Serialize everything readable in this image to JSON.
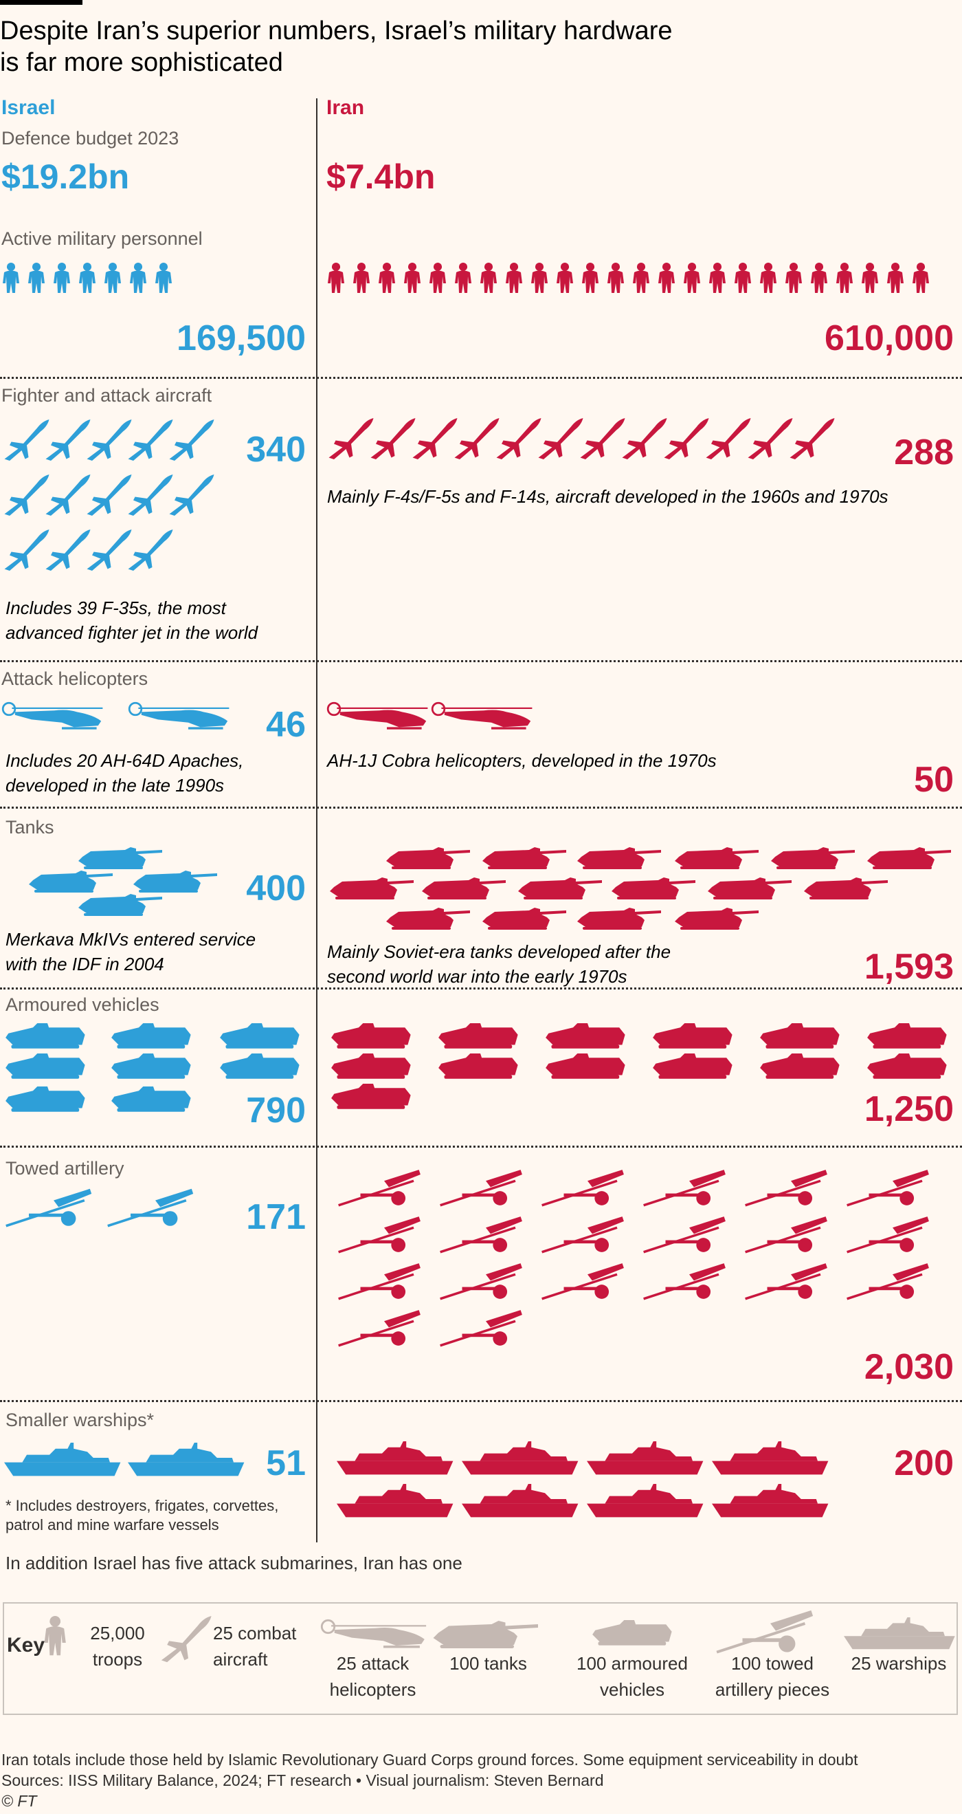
{
  "title": "Despite Iran’s superior numbers, Israel’s military hardware is far more sophisticated",
  "title_line1": "Despite Iran’s superior numbers, Israel’s military hardware",
  "title_line2": "is far more sophisticated",
  "colors": {
    "israel": "#2e9fd8",
    "iran": "#c8173e",
    "key": "#c4b8b2"
  },
  "headers": {
    "israel": "Israel",
    "iran": "Iran"
  },
  "chart_data": {
    "type": "table",
    "unit_key": {
      "troops": 25000,
      "aircraft": 25,
      "helicopters": 25,
      "tanks": 100,
      "armoured_vehicles": 100,
      "towed_artillery": 100,
      "warships": 25
    },
    "rows": [
      {
        "category": "Defence budget 2023",
        "israel": "$19.2bn",
        "iran": "$7.4bn"
      },
      {
        "category": "Active military personnel",
        "israel": 169500,
        "iran": 610000,
        "israel_label": "169,500",
        "iran_label": "610,000",
        "icon": "soldier-icon",
        "israel_icons": 7,
        "iran_icons": 24
      },
      {
        "category": "Fighter and attack aircraft",
        "israel": 340,
        "iran": 288,
        "israel_label": "340",
        "iran_label": "288",
        "icon": "jet-icon",
        "israel_icons": 14,
        "iran_icons": 12,
        "israel_note": "Includes 39 F-35s, the most advanced fighter jet in the world",
        "iran_note": "Mainly F-4s/F-5s and F-14s, aircraft developed in the 1960s and 1970s"
      },
      {
        "category": "Attack helicopters",
        "israel": 46,
        "iran": 50,
        "israel_label": "46",
        "iran_label": "50",
        "icon": "helicopter-icon",
        "israel_icons": 2,
        "iran_icons": 2,
        "israel_note": "Includes 20 AH-64D Apaches, developed in the late 1990s",
        "iran_note": "AH-1J Cobra helicopters, developed in the 1970s"
      },
      {
        "category": "Tanks",
        "israel": 400,
        "iran": 1593,
        "israel_label": "400",
        "iran_label": "1,593",
        "icon": "tank-icon",
        "israel_icons": 4,
        "iran_icons": 16,
        "israel_note": "Merkava MkIVs entered service with the IDF in 2004",
        "iran_note": "Mainly Soviet-era tanks developed after the second world war into the early 1970s"
      },
      {
        "category": "Armoured vehicles",
        "israel": 790,
        "iran": 1250,
        "israel_label": "790",
        "iran_label": "1,250",
        "icon": "apc-icon",
        "israel_icons": 8,
        "iran_icons": 13
      },
      {
        "category": "Towed artillery",
        "israel": 171,
        "iran": 2030,
        "israel_label": "171",
        "iran_label": "2,030",
        "icon": "artillery-icon",
        "israel_icons": 2,
        "iran_icons": 20
      },
      {
        "category": "Smaller warships*",
        "israel": 51,
        "iran": 200,
        "israel_label": "51",
        "iran_label": "200",
        "icon": "warship-icon",
        "israel_icons": 2,
        "iran_icons": 8,
        "israel_note": "* Includes destroyers, frigates, corvettes, patrol and mine warfare vessels"
      }
    ]
  },
  "labels": {
    "budget": "Defence budget 2023",
    "personnel": "Active military personnel",
    "aircraft": "Fighter and attack aircraft",
    "helicopters": "Attack helicopters",
    "tanks": "Tanks",
    "apc": "Armoured vehicles",
    "artillery": "Towed artillery",
    "warships": "Smaller warships*"
  },
  "values": {
    "il_budget": "$19.2bn",
    "ir_budget": "$7.4bn",
    "il_personnel": "169,500",
    "ir_personnel": "610,000",
    "il_aircraft": "340",
    "ir_aircraft": "288",
    "il_heli": "46",
    "ir_heli": "50",
    "il_tanks": "400",
    "ir_tanks": "1,593",
    "il_apc": "790",
    "ir_apc": "1,250",
    "il_art": "171",
    "ir_art": "2,030",
    "il_ships": "51",
    "ir_ships": "200"
  },
  "notes": {
    "il_aircraft_1": "Includes 39 F-35s, the most",
    "il_aircraft_2": "advanced fighter jet in the world",
    "ir_aircraft": "Mainly F-4s/F-5s and F-14s, aircraft developed in the 1960s and 1970s",
    "il_heli_1": "Includes 20 AH-64D Apaches,",
    "il_heli_2": "developed in the late 1990s",
    "ir_heli": "AH-1J Cobra helicopters, developed in the 1970s",
    "il_tanks_1": "Merkava MkIVs entered service",
    "il_tanks_2": "with the IDF in 2004",
    "ir_tanks_1": "Mainly Soviet-era tanks developed after the",
    "ir_tanks_2": "second world war into the early 1970s",
    "ships_1": "* Includes destroyers, frigates, corvettes,",
    "ships_2": "patrol and mine warfare vessels",
    "submarines": "In addition Israel has five attack submarines, Iran has one"
  },
  "key": {
    "title": "Key",
    "troops_1": "25,000",
    "troops_2": "troops",
    "aircraft_1": "25 combat",
    "aircraft_2": "aircraft",
    "heli_1": "25 attack",
    "heli_2": "helicopters",
    "tanks": "100 tanks",
    "apc_1": "100 armoured",
    "apc_2": "vehicles",
    "art_1": "100 towed",
    "art_2": "artillery pieces",
    "ships": "25 warships"
  },
  "footer": {
    "line1": "Iran totals include those held by Islamic Revolutionary Guard Corps ground forces. Some equipment serviceability in doubt",
    "line2": "Sources:  IISS Military Balance, 2024; FT research • Visual journalism: Steven Bernard",
    "line3": "© FT"
  }
}
